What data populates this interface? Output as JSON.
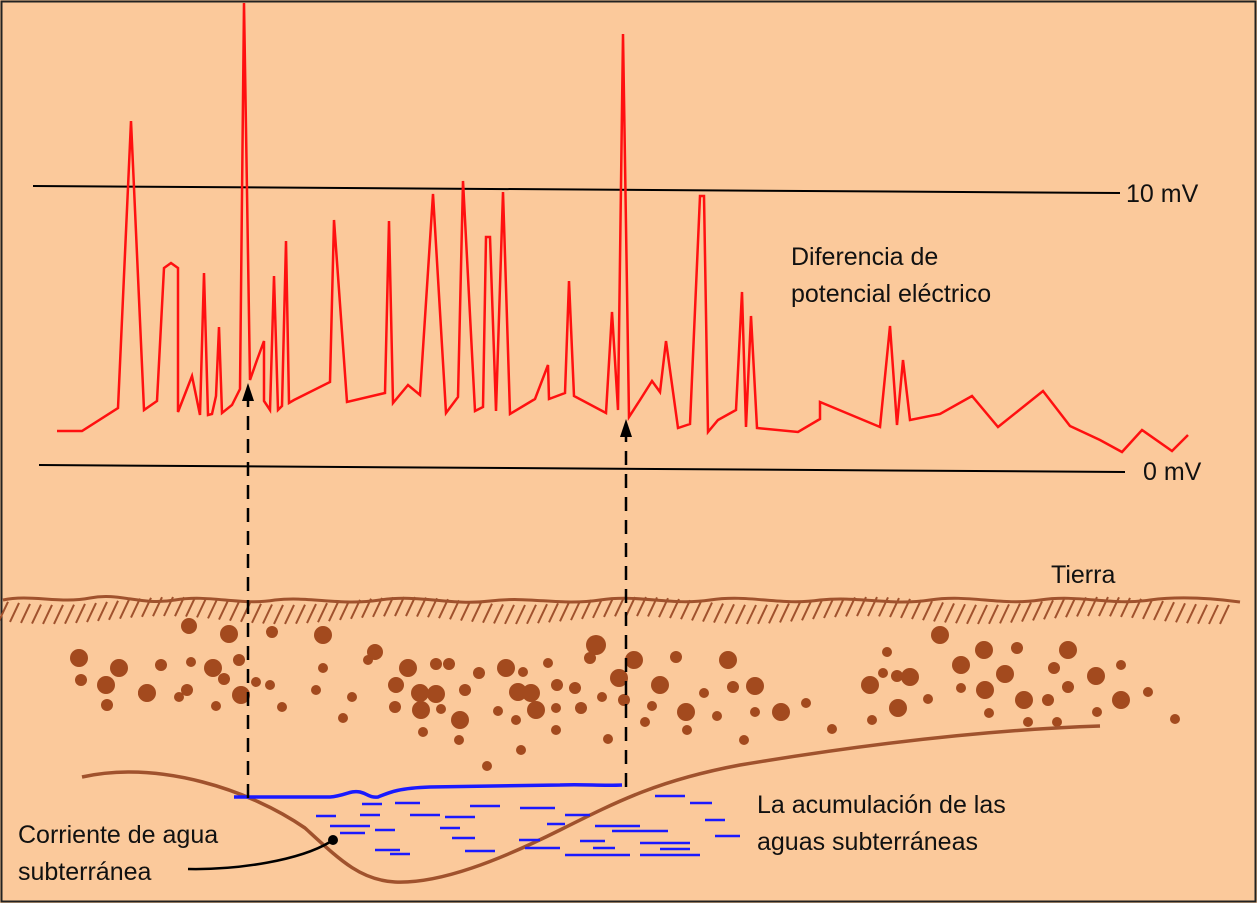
{
  "labels": {
    "ten_mv": "10 mV",
    "zero_mv": "0 mV",
    "signal_line1": "Diferencia de",
    "signal_line2": "potencial eléctrico",
    "ground": "Tierra",
    "accumulation_line1": "La acumulación de las",
    "accumulation_line2": "aguas subterráneas",
    "stream_line1": "Corriente de agua",
    "stream_line2": "subterránea"
  },
  "colors": {
    "background": "#fbc99b",
    "signal": "#ff1010",
    "earth": "#a0522d",
    "pebbles": "#a34a1e",
    "water": "#1a1aff",
    "reference_lines": "#000000"
  }
}
